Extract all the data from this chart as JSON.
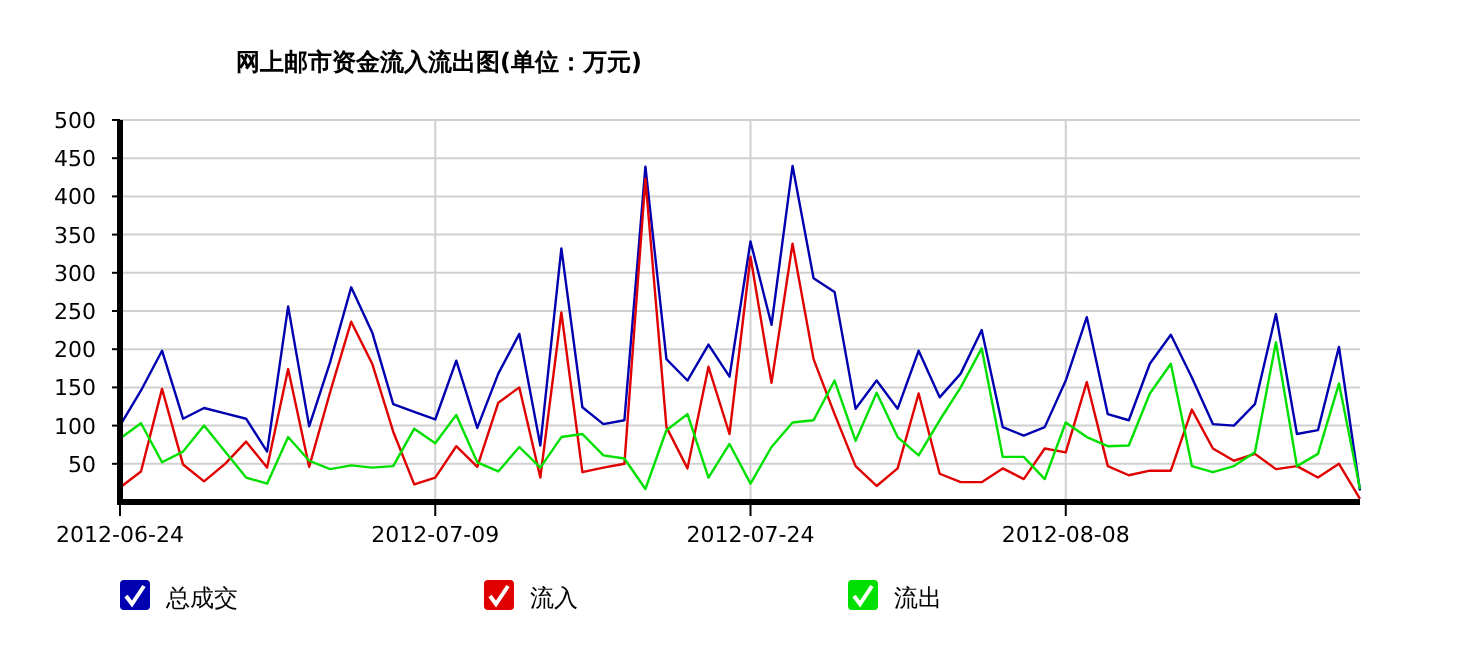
{
  "chart_data": {
    "type": "line",
    "title": "网上邮市资金流入流出图(单位：万元)",
    "x": [
      "2012-06-24",
      "2012-06-25",
      "2012-06-26",
      "2012-06-27",
      "2012-06-28",
      "2012-06-29",
      "2012-06-30",
      "2012-07-01",
      "2012-07-02",
      "2012-07-03",
      "2012-07-04",
      "2012-07-05",
      "2012-07-06",
      "2012-07-07",
      "2012-07-08",
      "2012-07-09",
      "2012-07-10",
      "2012-07-11",
      "2012-07-12",
      "2012-07-13",
      "2012-07-14",
      "2012-07-15",
      "2012-07-16",
      "2012-07-17",
      "2012-07-18",
      "2012-07-19",
      "2012-07-20",
      "2012-07-21",
      "2012-07-22",
      "2012-07-23",
      "2012-07-24",
      "2012-07-25",
      "2012-07-26",
      "2012-07-27",
      "2012-07-28",
      "2012-07-29",
      "2012-07-30",
      "2012-07-31",
      "2012-08-01",
      "2012-08-02",
      "2012-08-03",
      "2012-08-04",
      "2012-08-05",
      "2012-08-06",
      "2012-08-07",
      "2012-08-08",
      "2012-08-09",
      "2012-08-10",
      "2012-08-11",
      "2012-08-12",
      "2012-08-13",
      "2012-08-14",
      "2012-08-15",
      "2012-08-16",
      "2012-08-17",
      "2012-08-18",
      "2012-08-19",
      "2012-08-20",
      "2012-08-21",
      "2012-08-22"
    ],
    "series": [
      {
        "name": "总成交",
        "color": "#0000b0",
        "values": [
          100,
          146,
          198,
          109,
          123,
          116,
          109,
          66,
          256,
          99,
          183,
          281,
          222,
          128,
          118,
          108,
          185,
          97,
          168,
          220,
          74,
          332,
          124,
          102,
          107,
          439,
          187,
          159,
          206,
          164,
          341,
          232,
          440,
          293,
          275,
          122,
          159,
          122,
          198,
          137,
          168,
          225,
          98,
          87,
          98,
          159,
          242,
          115,
          107,
          181,
          219,
          163,
          102,
          100,
          128,
          246,
          89,
          94,
          203,
          15
        ]
      },
      {
        "name": "流入",
        "color": "#e00000",
        "values": [
          19,
          40,
          148,
          49,
          27,
          50,
          79,
          45,
          174,
          46,
          144,
          236,
          181,
          92,
          23,
          32,
          73,
          46,
          130,
          150,
          32,
          248,
          39,
          45,
          50,
          423,
          98,
          44,
          177,
          89,
          321,
          156,
          338,
          187,
          115,
          47,
          21,
          44,
          142,
          37,
          26,
          26,
          44,
          30,
          70,
          65,
          157,
          47,
          35,
          41,
          41,
          121,
          70,
          54,
          63,
          43,
          47,
          32,
          50,
          4
        ]
      },
      {
        "name": "流出",
        "color": "#00e000",
        "values": [
          83,
          103,
          52,
          66,
          100,
          66,
          32,
          24,
          85,
          54,
          43,
          48,
          45,
          47,
          96,
          77,
          114,
          52,
          40,
          72,
          45,
          85,
          89,
          61,
          57,
          17,
          94,
          115,
          32,
          76,
          24,
          72,
          104,
          107,
          159,
          80,
          143,
          85,
          61,
          107,
          150,
          201,
          59,
          59,
          30,
          104,
          85,
          73,
          74,
          142,
          181,
          47,
          39,
          47,
          65,
          209,
          47,
          63,
          155,
          17
        ]
      }
    ],
    "xlim": [
      "2012-06-24",
      "2012-08-22"
    ],
    "xticks": [
      "2012-06-24",
      "2012-07-09",
      "2012-07-24",
      "2012-08-08"
    ],
    "ylim": [
      0,
      500
    ],
    "yticks": [
      50,
      100,
      150,
      200,
      250,
      300,
      350,
      400,
      450,
      500
    ],
    "grid": true,
    "legend": "bottom"
  }
}
